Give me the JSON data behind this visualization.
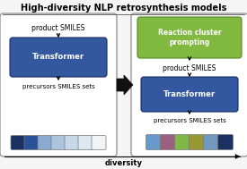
{
  "title": "High-diversity NLP retrosynthesis models",
  "diversity_label": "diversity",
  "left_box": {
    "label_top": "product SMILES",
    "transformer_label": "Transformer",
    "label_bottom": "precursors SMILES sets",
    "colors": [
      "#1a3060",
      "#2a5298",
      "#8aaad0",
      "#adc4de",
      "#c8d8ea",
      "#dde8f0",
      "#f2f5f8"
    ]
  },
  "right_box": {
    "cluster_label": "Reaction cluster\nprompting",
    "label_top": "product SMILES",
    "transformer_label": "Transformer",
    "label_bottom": "precursors SMILES sets",
    "colors": [
      "#6699cc",
      "#9b6080",
      "#80b848",
      "#9a9830",
      "#7098c0",
      "#1a3060"
    ]
  },
  "arrow_color": "#111111",
  "bg_color": "#f5f5f5",
  "box_outline": "#999999",
  "transformer_color": "#3358a0",
  "cluster_color": "#80b840",
  "title_fontsize": 7.0,
  "body_fontsize": 5.5,
  "small_fontsize": 5.0
}
